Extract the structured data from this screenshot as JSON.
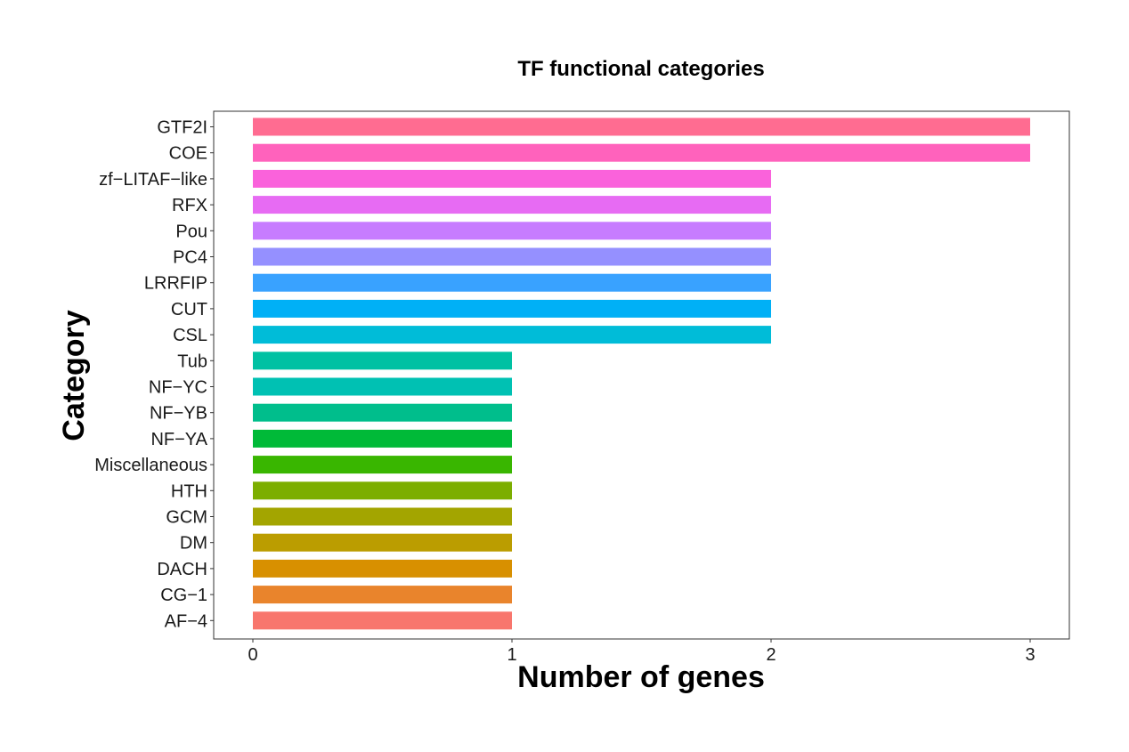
{
  "chart_data": {
    "type": "bar",
    "orientation": "horizontal",
    "title": "TF functional categories",
    "xlabel": "Number of genes",
    "ylabel": "Category",
    "xlim": [
      0,
      3
    ],
    "xticks": [
      "0",
      "1",
      "2",
      "3"
    ],
    "grid": false,
    "legend": "none",
    "categories": [
      "GTF2I",
      "COE",
      "zf−LITAF−like",
      "RFX",
      "Pou",
      "PC4",
      "LRRFIP",
      "CUT",
      "CSL",
      "Tub",
      "NF−YC",
      "NF−YB",
      "NF−YA",
      "Miscellaneous",
      "HTH",
      "GCM",
      "DM",
      "DACH",
      "CG−1",
      "AF−4"
    ],
    "values": [
      3,
      3,
      2,
      2,
      2,
      2,
      2,
      2,
      2,
      1,
      1,
      1,
      1,
      1,
      1,
      1,
      1,
      1,
      1,
      1
    ],
    "colors": [
      "#FF6C91",
      "#FF62BC",
      "#FA62DB",
      "#E76BF3",
      "#C77CFF",
      "#9590FF",
      "#39A2FF",
      "#00B0F6",
      "#00BCD8",
      "#00C1A3",
      "#00C1B3",
      "#00BE8C",
      "#00BA38",
      "#39B600",
      "#7CAE00",
      "#A3A500",
      "#BB9D00",
      "#D89000",
      "#E9842C",
      "#F8766D"
    ]
  }
}
